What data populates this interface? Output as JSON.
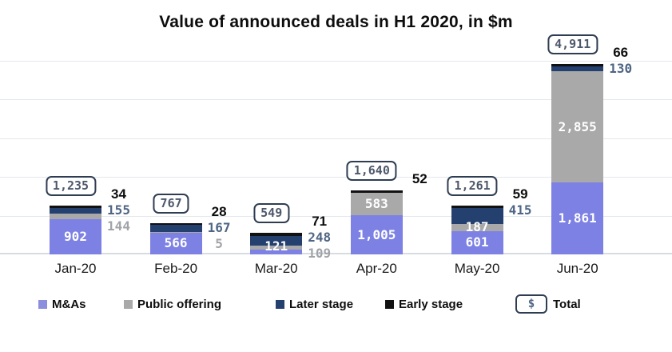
{
  "title": "Value of announced deals in H1 2020, in $m",
  "colors": {
    "mas": "#7d81e3",
    "public": "#a9a9a9",
    "later": "#24406f",
    "early": "#111111",
    "legend_mas": "#8b8edd",
    "slate_label": "#4e6584",
    "gray_label": "#a0a3a8",
    "badge_border": "#2f3d52",
    "badge_text": "#4e586b",
    "grid": "#e3e7ec"
  },
  "chart_data": {
    "type": "bar",
    "stacked": true,
    "title": "Value of announced deals in H1 2020, in $m",
    "categories": [
      "Jan-20",
      "Feb-20",
      "Mar-20",
      "Apr-20",
      "May-20",
      "Jun-20"
    ],
    "series": [
      {
        "key": "mas",
        "name": "M&As",
        "values": [
          902,
          566,
          121,
          1005,
          601,
          1861
        ]
      },
      {
        "key": "public",
        "name": "Public offering",
        "values": [
          144,
          5,
          109,
          583,
          187,
          2855
        ]
      },
      {
        "key": "later",
        "name": "Later stage",
        "values": [
          155,
          167,
          248,
          0,
          415,
          130
        ]
      },
      {
        "key": "early",
        "name": "Early stage",
        "values": [
          34,
          28,
          71,
          52,
          59,
          66
        ]
      }
    ],
    "totals": [
      1235,
      767,
      549,
      1640,
      1261,
      4911
    ],
    "totals_display": [
      "1,235",
      "767",
      "549",
      "1,640",
      "1,261",
      "4,911"
    ],
    "value_labels": {
      "inside": [
        [
          {
            "key": "mas",
            "text": "902"
          }
        ],
        [
          {
            "key": "mas",
            "text": "566"
          }
        ],
        [
          {
            "key": "mas",
            "text": "121"
          }
        ],
        [
          {
            "key": "mas",
            "text": "1,005"
          },
          {
            "key": "public",
            "text": "583"
          }
        ],
        [
          {
            "key": "mas",
            "text": "601"
          },
          {
            "key": "public",
            "text": "187"
          }
        ],
        [
          {
            "key": "mas",
            "text": "1,861"
          },
          {
            "key": "public",
            "text": "2,855"
          }
        ]
      ],
      "outside": [
        [
          {
            "key": "early",
            "text": "34"
          },
          {
            "key": "later",
            "text": "155"
          },
          {
            "key": "public",
            "text": "144"
          }
        ],
        [
          {
            "key": "early",
            "text": "28"
          },
          {
            "key": "later",
            "text": "167"
          },
          {
            "key": "public",
            "text": "5"
          }
        ],
        [
          {
            "key": "early",
            "text": "71"
          },
          {
            "key": "later",
            "text": "248"
          },
          {
            "key": "public",
            "text": "109"
          }
        ],
        [
          {
            "key": "early",
            "text": "52"
          }
        ],
        [
          {
            "key": "early",
            "text": "59"
          },
          {
            "key": "later",
            "text": "415"
          }
        ],
        [
          {
            "key": "early",
            "text": "66"
          },
          {
            "key": "later",
            "text": "130"
          }
        ]
      ]
    },
    "ylim": [
      0,
      5100
    ],
    "gridline_step": 1000,
    "grid": true,
    "xlabel": "",
    "ylabel": "",
    "legend_position": "bottom"
  },
  "legend": {
    "items": [
      {
        "key": "mas",
        "label": "M&As"
      },
      {
        "key": "public",
        "label": "Public offering"
      },
      {
        "key": "later",
        "label": "Later stage"
      },
      {
        "key": "early",
        "label": "Early stage"
      },
      {
        "key": "total",
        "label": "Total",
        "icon": "$"
      }
    ]
  }
}
